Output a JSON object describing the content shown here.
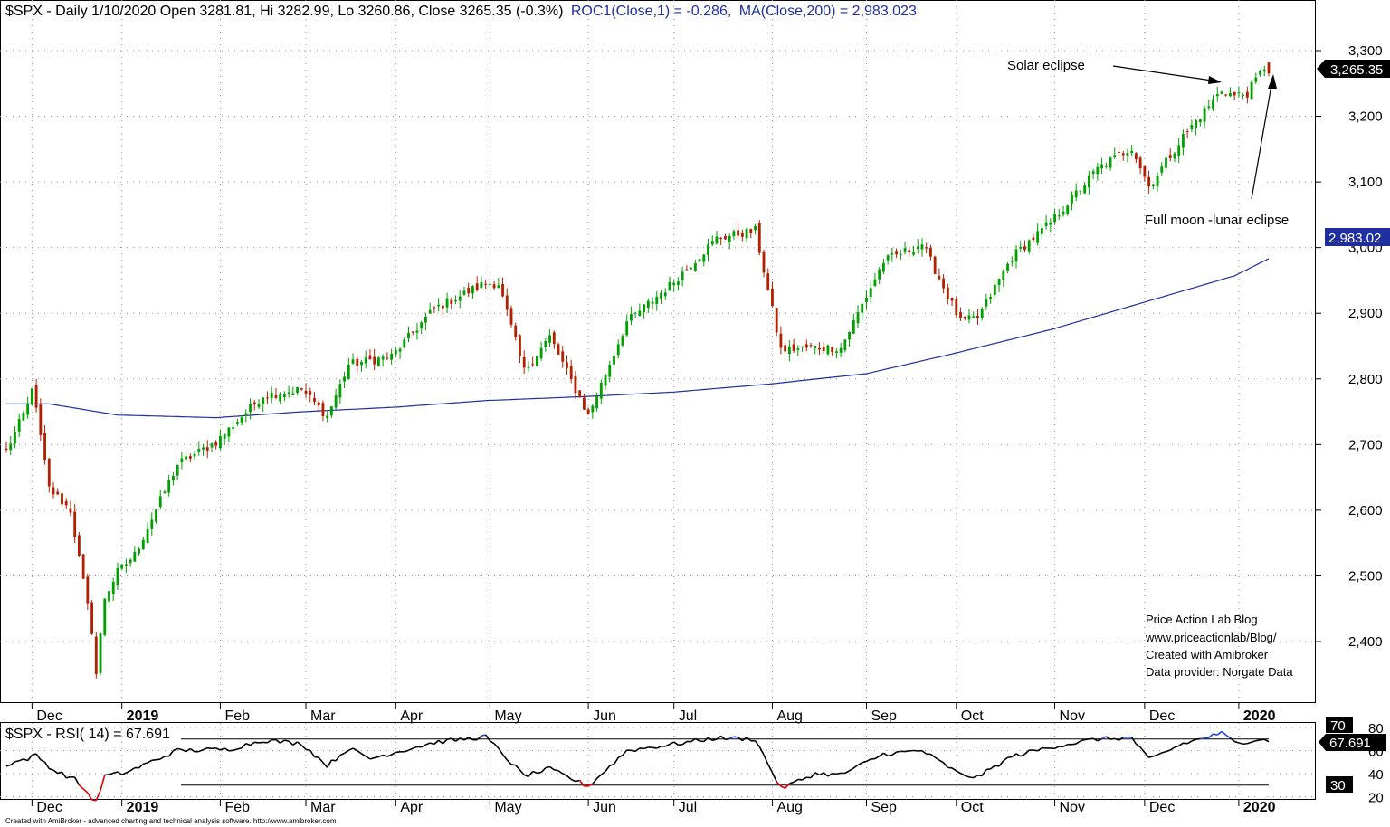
{
  "header": {
    "symbol_line": "$SPX - Daily 1/10/2020 Open 3281.81, Hi 3282.99, Lo 3260.86, Close 3265.35 (-0.3%)",
    "roc_line": "ROC1(Close,1) = -0.286,",
    "ma_line": "MA(Close,200) = 2,983.023"
  },
  "annotations": {
    "solar": "Solar eclipse",
    "lunar": "Full moon -lunar eclipse"
  },
  "credits": {
    "line1": "Price Action Lab Blog",
    "line2": "www.priceactionlab/Blog/",
    "line3": "Created with Amibroker",
    "line4": "Data provider: Norgate Data"
  },
  "rsi_panel": {
    "title": "$SPX - RSI( 14) = 67.691",
    "badge_70": "70",
    "badge_30": "30",
    "last_value": "67.691"
  },
  "footer": "Created with AmiBroker - advanced charting and technical analysis software. http://www.amibroker.com",
  "colors": {
    "up": "#00a000",
    "down": "#b22000",
    "ma": "#1f2fa0",
    "rsi": "#000000",
    "rsi_overbought": "#1f3fe0",
    "rsi_oversold": "#e00000",
    "price_badge": "#000000",
    "ma_badge": "#1f2f9f"
  },
  "chart_data": [
    {
      "type": "candlestick",
      "title": "$SPX - Daily 1/10/2020",
      "y_ticks": [
        2400,
        2500,
        2600,
        2700,
        2800,
        2900,
        3000,
        3100,
        3200,
        3300
      ],
      "y_tick_labels": [
        "2,400",
        "2,500",
        "2,600",
        "2,700",
        "2,800",
        "2,900",
        "3,000",
        "3,100",
        "3,200",
        "3,300"
      ],
      "ylim": [
        2330,
        3340
      ],
      "x_labels": [
        "Dec",
        "2019",
        "Feb",
        "Mar",
        "Apr",
        "May",
        "Jun",
        "Jul",
        "Aug",
        "Sep",
        "Oct",
        "Nov",
        "Dec",
        "2020"
      ],
      "last_close_label": "3,265.35",
      "ma_label": "2,983.02",
      "waypoints_close": [
        [
          "2018-11-23",
          2690
        ],
        [
          "2018-11-30",
          2760
        ],
        [
          "2018-12-03",
          2790
        ],
        [
          "2018-12-07",
          2633
        ],
        [
          "2018-12-14",
          2600
        ],
        [
          "2018-12-21",
          2417
        ],
        [
          "2018-12-24",
          2351
        ],
        [
          "2018-12-26",
          2467
        ],
        [
          "2018-12-31",
          2506
        ],
        [
          "2019-01-04",
          2532
        ],
        [
          "2019-01-18",
          2670
        ],
        [
          "2019-01-31",
          2704
        ],
        [
          "2019-02-15",
          2775
        ],
        [
          "2019-02-28",
          2784
        ],
        [
          "2019-03-08",
          2743
        ],
        [
          "2019-03-15",
          2822
        ],
        [
          "2019-03-29",
          2834
        ],
        [
          "2019-04-12",
          2907
        ],
        [
          "2019-04-30",
          2946
        ],
        [
          "2019-05-03",
          2945
        ],
        [
          "2019-05-13",
          2812
        ],
        [
          "2019-05-21",
          2864
        ],
        [
          "2019-06-03",
          2744
        ],
        [
          "2019-06-14",
          2887
        ],
        [
          "2019-06-28",
          2942
        ],
        [
          "2019-07-15",
          3014
        ],
        [
          "2019-07-26",
          3026
        ],
        [
          "2019-08-05",
          2844
        ],
        [
          "2019-08-15",
          2848
        ],
        [
          "2019-08-23",
          2847
        ],
        [
          "2019-09-06",
          2979
        ],
        [
          "2019-09-19",
          3006
        ],
        [
          "2019-10-02",
          2887
        ],
        [
          "2019-10-08",
          2893
        ],
        [
          "2019-10-18",
          2986
        ],
        [
          "2019-10-31",
          3038
        ],
        [
          "2019-11-15",
          3120
        ],
        [
          "2019-11-27",
          3153
        ],
        [
          "2019-12-03",
          3093
        ],
        [
          "2019-12-13",
          3169
        ],
        [
          "2019-12-26",
          3240
        ],
        [
          "2019-12-31",
          3231
        ],
        [
          "2020-01-03",
          3235
        ],
        [
          "2020-01-09",
          3275
        ],
        [
          "2020-01-10",
          3265.35
        ]
      ],
      "ma200": [
        [
          "2018-11-23",
          2762
        ],
        [
          "2018-12-07",
          2762
        ],
        [
          "2018-12-31",
          2745
        ],
        [
          "2019-01-31",
          2741
        ],
        [
          "2019-02-28",
          2750
        ],
        [
          "2019-03-31",
          2757
        ],
        [
          "2019-04-30",
          2767
        ],
        [
          "2019-05-31",
          2773
        ],
        [
          "2019-06-30",
          2780
        ],
        [
          "2019-07-31",
          2792
        ],
        [
          "2019-08-31",
          2808
        ],
        [
          "2019-09-30",
          2838
        ],
        [
          "2019-10-31",
          2875
        ],
        [
          "2019-11-30",
          2917
        ],
        [
          "2019-12-31",
          2957
        ],
        [
          "2020-01-10",
          2983.02
        ]
      ],
      "last_bar": {
        "date": "2020-01-10",
        "open": 3281.81,
        "high": 3282.99,
        "low": 3260.86,
        "close": 3265.35
      }
    },
    {
      "type": "line",
      "title": "$SPX - RSI( 14) = 67.691",
      "y_ticks": [
        20,
        40,
        60,
        80
      ],
      "levels": [
        30,
        70
      ],
      "ylim": [
        10,
        90
      ],
      "x_labels": [
        "Dec",
        "2019",
        "Feb",
        "Mar",
        "Apr",
        "May",
        "Jun",
        "Jul",
        "Aug",
        "Sep",
        "Oct",
        "Nov",
        "Dec",
        "2020"
      ],
      "waypoints": [
        [
          "2018-11-23",
          48
        ],
        [
          "2018-11-30",
          53
        ],
        [
          "2018-12-04",
          56
        ],
        [
          "2018-12-10",
          43
        ],
        [
          "2018-12-17",
          35
        ],
        [
          "2018-12-24",
          15
        ],
        [
          "2018-12-26",
          38
        ],
        [
          "2019-01-02",
          41
        ],
        [
          "2019-01-18",
          60
        ],
        [
          "2019-02-05",
          61
        ],
        [
          "2019-02-15",
          69
        ],
        [
          "2019-02-28",
          66
        ],
        [
          "2019-03-08",
          47
        ],
        [
          "2019-03-15",
          62
        ],
        [
          "2019-03-22",
          53
        ],
        [
          "2019-04-12",
          67
        ],
        [
          "2019-04-30",
          72
        ],
        [
          "2019-05-13",
          38
        ],
        [
          "2019-05-21",
          44
        ],
        [
          "2019-06-03",
          29
        ],
        [
          "2019-06-14",
          60
        ],
        [
          "2019-06-28",
          65
        ],
        [
          "2019-07-15",
          71
        ],
        [
          "2019-07-26",
          70
        ],
        [
          "2019-08-05",
          27
        ],
        [
          "2019-08-15",
          40
        ],
        [
          "2019-08-23",
          39
        ],
        [
          "2019-09-06",
          57
        ],
        [
          "2019-09-19",
          60
        ],
        [
          "2019-10-02",
          39
        ],
        [
          "2019-10-08",
          37
        ],
        [
          "2019-10-18",
          55
        ],
        [
          "2019-10-31",
          63
        ],
        [
          "2019-11-15",
          70
        ],
        [
          "2019-11-27",
          71
        ],
        [
          "2019-12-03",
          52
        ],
        [
          "2019-12-13",
          66
        ],
        [
          "2019-12-26",
          75
        ],
        [
          "2019-12-31",
          67
        ],
        [
          "2020-01-03",
          68
        ],
        [
          "2020-01-08",
          70
        ],
        [
          "2020-01-10",
          67.691
        ]
      ]
    }
  ]
}
